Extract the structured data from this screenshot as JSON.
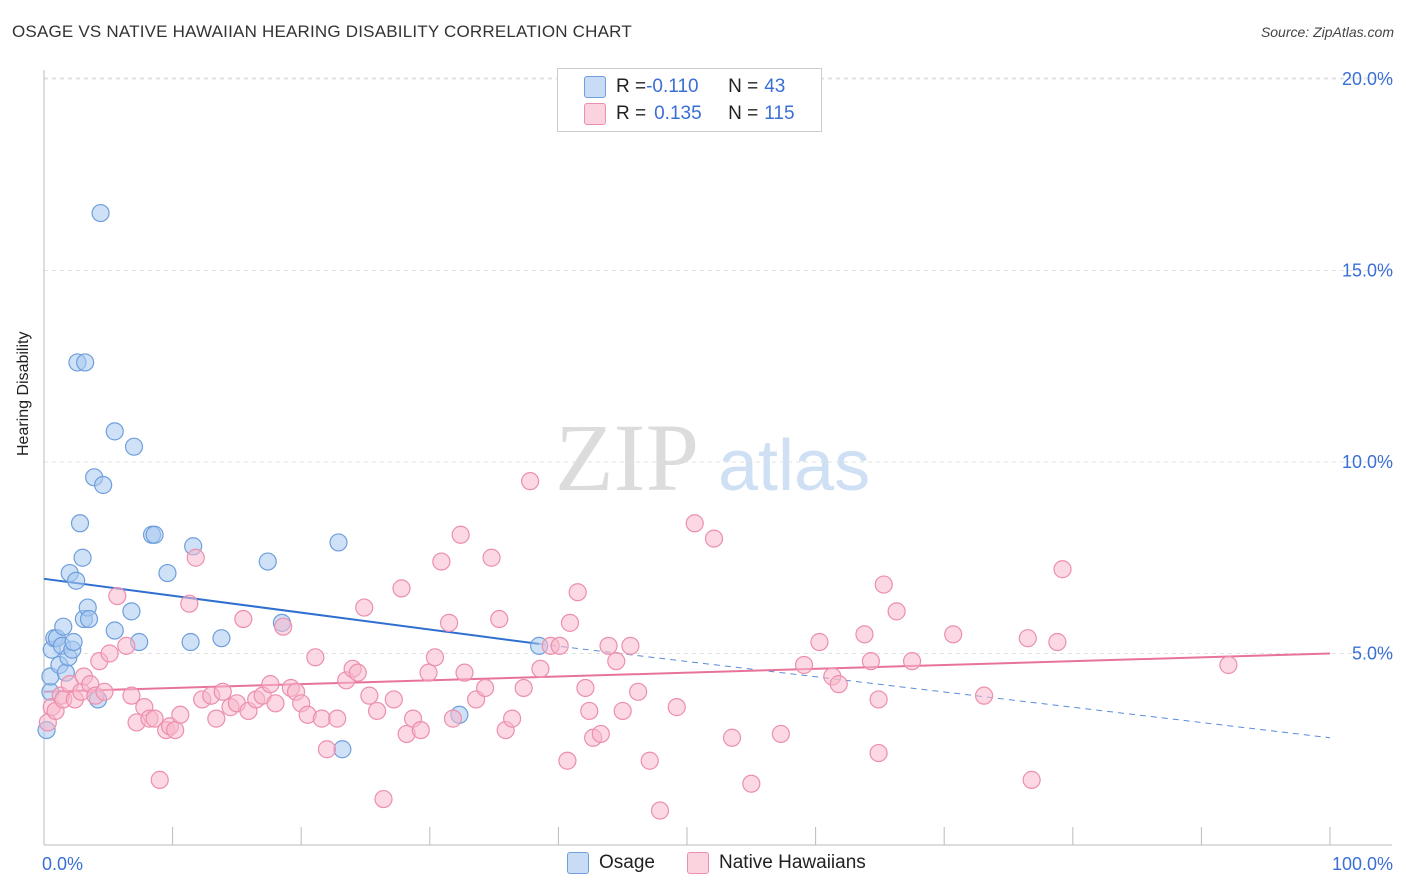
{
  "title": "OSAGE VS NATIVE HAWAIIAN HEARING DISABILITY CORRELATION CHART",
  "source": "Source: ZipAtlas.com",
  "watermark": {
    "zip": "ZIP",
    "atlas": "atlas"
  },
  "stats": [
    {
      "r_label": "R = ",
      "r_value": "-0.110",
      "n_label": "N = ",
      "n_value": "43",
      "color": "#a8c8f0"
    },
    {
      "r_label": "R = ",
      "r_value": "0.135",
      "n_label": "N = ",
      "n_value": "115",
      "color": "#f7b8cc"
    }
  ],
  "legend": [
    {
      "label": "Osage",
      "color": "#a8c8f0"
    },
    {
      "label": "Native Hawaiians",
      "color": "#f7b8cc"
    }
  ],
  "chart_data": {
    "type": "scatter",
    "title": "OSAGE VS NATIVE HAWAIIAN HEARING DISABILITY CORRELATION CHART",
    "xlabel": "",
    "ylabel": "Hearing Disability",
    "xlim": [
      0,
      100
    ],
    "ylim": [
      0,
      20.5
    ],
    "x_tick_labels": [
      "0.0%",
      "100.0%"
    ],
    "y_ticks": [
      5,
      10,
      15,
      20
    ],
    "y_tick_labels": [
      "5.0%",
      "10.0%",
      "15.0%",
      "20.0%"
    ],
    "series": [
      {
        "name": "Osage",
        "color": "#a8c8f0",
        "stroke": "#6f9fdc",
        "trend": {
          "x0": 0,
          "y0": 6.95,
          "x1": 38.5,
          "y1": 5.25,
          "dash_to_x": 100,
          "dash_to_y": 2.8,
          "color": "#2f6fd0"
        },
        "points": [
          [
            0.2,
            3.0
          ],
          [
            0.5,
            4.0
          ],
          [
            0.5,
            4.4
          ],
          [
            0.6,
            5.1
          ],
          [
            0.8,
            5.4
          ],
          [
            1.0,
            5.4
          ],
          [
            1.2,
            4.7
          ],
          [
            1.4,
            5.2
          ],
          [
            1.5,
            5.7
          ],
          [
            1.7,
            4.5
          ],
          [
            1.9,
            4.9
          ],
          [
            2.0,
            7.1
          ],
          [
            2.2,
            5.1
          ],
          [
            2.3,
            5.3
          ],
          [
            2.5,
            6.9
          ],
          [
            2.8,
            8.4
          ],
          [
            3.0,
            7.5
          ],
          [
            3.1,
            5.9
          ],
          [
            3.4,
            6.2
          ],
          [
            3.5,
            5.9
          ],
          [
            3.9,
            9.6
          ],
          [
            4.2,
            3.8
          ],
          [
            4.4,
            16.5
          ],
          [
            4.6,
            9.4
          ],
          [
            2.6,
            12.6
          ],
          [
            3.2,
            12.6
          ],
          [
            5.5,
            5.6
          ],
          [
            5.5,
            10.8
          ],
          [
            6.8,
            6.1
          ],
          [
            7.0,
            10.4
          ],
          [
            7.4,
            5.3
          ],
          [
            8.4,
            8.1
          ],
          [
            8.6,
            8.1
          ],
          [
            9.6,
            7.1
          ],
          [
            11.4,
            5.3
          ],
          [
            11.6,
            7.8
          ],
          [
            13.8,
            5.4
          ],
          [
            17.4,
            7.4
          ],
          [
            18.5,
            5.8
          ],
          [
            22.9,
            7.9
          ],
          [
            23.2,
            2.5
          ],
          [
            32.3,
            3.4
          ],
          [
            38.5,
            5.2
          ]
        ]
      },
      {
        "name": "Native Hawaiians",
        "color": "#f7b8cc",
        "stroke": "#ec8fad",
        "trend": {
          "x0": 0,
          "y0": 4.0,
          "x1": 100,
          "y1": 5.0,
          "color": "#e8739a"
        },
        "points": [
          [
            0.3,
            3.2
          ],
          [
            0.6,
            3.6
          ],
          [
            0.9,
            3.5
          ],
          [
            1.3,
            3.9
          ],
          [
            1.5,
            3.8
          ],
          [
            2.0,
            4.2
          ],
          [
            2.4,
            3.8
          ],
          [
            2.9,
            4.0
          ],
          [
            3.1,
            4.4
          ],
          [
            3.6,
            4.2
          ],
          [
            4.0,
            3.9
          ],
          [
            4.3,
            4.8
          ],
          [
            4.7,
            4.0
          ],
          [
            5.1,
            5.0
          ],
          [
            5.7,
            6.5
          ],
          [
            6.4,
            5.2
          ],
          [
            6.8,
            3.9
          ],
          [
            7.2,
            3.2
          ],
          [
            7.8,
            3.6
          ],
          [
            8.2,
            3.3
          ],
          [
            8.6,
            3.3
          ],
          [
            9.0,
            1.7
          ],
          [
            9.5,
            3.0
          ],
          [
            9.8,
            3.1
          ],
          [
            10.2,
            3.0
          ],
          [
            10.6,
            3.4
          ],
          [
            11.3,
            6.3
          ],
          [
            11.8,
            7.5
          ],
          [
            12.3,
            3.8
          ],
          [
            13.0,
            3.9
          ],
          [
            13.4,
            3.3
          ],
          [
            13.9,
            4.0
          ],
          [
            14.5,
            3.6
          ],
          [
            15.0,
            3.7
          ],
          [
            15.5,
            5.9
          ],
          [
            15.9,
            3.5
          ],
          [
            16.5,
            3.8
          ],
          [
            17.0,
            3.9
          ],
          [
            17.6,
            4.2
          ],
          [
            18.0,
            3.7
          ],
          [
            18.6,
            5.7
          ],
          [
            19.2,
            4.1
          ],
          [
            19.6,
            4.0
          ],
          [
            20.0,
            3.7
          ],
          [
            20.5,
            3.4
          ],
          [
            21.1,
            4.9
          ],
          [
            21.6,
            3.3
          ],
          [
            22.0,
            2.5
          ],
          [
            22.8,
            3.3
          ],
          [
            23.5,
            4.3
          ],
          [
            24.0,
            4.6
          ],
          [
            24.4,
            4.5
          ],
          [
            24.9,
            6.2
          ],
          [
            25.3,
            3.9
          ],
          [
            25.9,
            3.5
          ],
          [
            26.4,
            1.2
          ],
          [
            27.2,
            3.8
          ],
          [
            27.8,
            6.7
          ],
          [
            28.2,
            2.9
          ],
          [
            28.7,
            3.3
          ],
          [
            29.3,
            3.0
          ],
          [
            29.9,
            4.5
          ],
          [
            30.4,
            4.9
          ],
          [
            30.9,
            7.4
          ],
          [
            31.5,
            5.8
          ],
          [
            31.8,
            3.3
          ],
          [
            32.4,
            8.1
          ],
          [
            32.7,
            4.5
          ],
          [
            33.6,
            3.8
          ],
          [
            34.3,
            4.1
          ],
          [
            34.8,
            7.5
          ],
          [
            35.4,
            5.9
          ],
          [
            35.9,
            3.0
          ],
          [
            36.4,
            3.3
          ],
          [
            37.3,
            4.1
          ],
          [
            37.8,
            9.5
          ],
          [
            38.6,
            4.6
          ],
          [
            39.4,
            5.2
          ],
          [
            40.1,
            5.2
          ],
          [
            40.7,
            2.2
          ],
          [
            40.9,
            5.8
          ],
          [
            41.5,
            6.6
          ],
          [
            42.1,
            4.1
          ],
          [
            42.4,
            3.5
          ],
          [
            42.7,
            2.8
          ],
          [
            43.3,
            2.9
          ],
          [
            43.9,
            5.2
          ],
          [
            44.5,
            4.8
          ],
          [
            45.0,
            3.5
          ],
          [
            45.6,
            5.2
          ],
          [
            46.2,
            4.0
          ],
          [
            47.1,
            2.2
          ],
          [
            47.9,
            0.9
          ],
          [
            49.2,
            3.6
          ],
          [
            50.6,
            8.4
          ],
          [
            52.1,
            8.0
          ],
          [
            53.5,
            2.8
          ],
          [
            55.0,
            1.6
          ],
          [
            57.3,
            2.9
          ],
          [
            59.1,
            4.7
          ],
          [
            60.3,
            5.3
          ],
          [
            61.3,
            4.4
          ],
          [
            61.8,
            4.2
          ],
          [
            63.8,
            5.5
          ],
          [
            64.3,
            4.8
          ],
          [
            64.9,
            3.8
          ],
          [
            64.9,
            2.4
          ],
          [
            65.3,
            6.8
          ],
          [
            66.3,
            6.1
          ],
          [
            67.5,
            4.8
          ],
          [
            70.7,
            5.5
          ],
          [
            73.1,
            3.9
          ],
          [
            76.5,
            5.4
          ],
          [
            76.8,
            1.7
          ],
          [
            78.8,
            5.3
          ],
          [
            79.2,
            7.2
          ],
          [
            92.1,
            4.7
          ]
        ]
      }
    ]
  }
}
